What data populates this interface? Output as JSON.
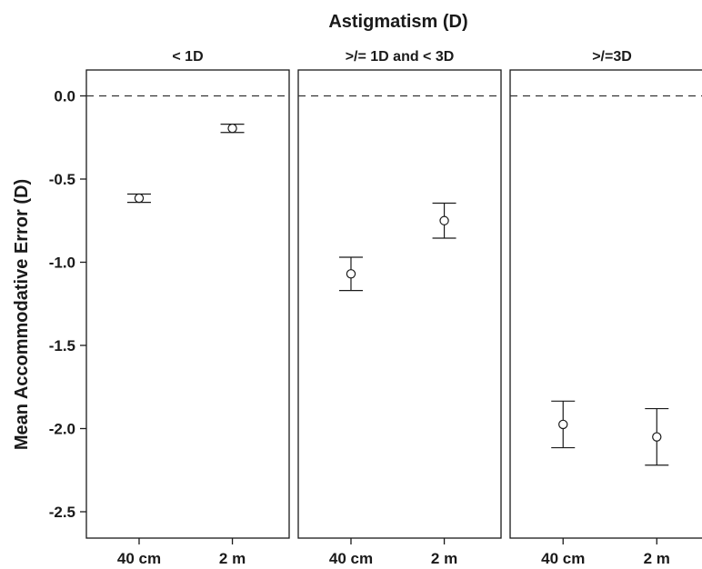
{
  "chart_data": {
    "type": "scatter",
    "title": "Astigmatism (D)",
    "ylabel": "Mean Accommodative Error (D)",
    "xlabel": "",
    "ylim": [
      -2.65,
      0.2
    ],
    "yticks": [
      0.0,
      -0.5,
      -1.0,
      -1.5,
      -2.0,
      -2.5
    ],
    "ytick_labels": [
      "0.0",
      "-0.5",
      "-1.0",
      "-1.5",
      "-2.0",
      "-2.5"
    ],
    "categories": [
      "40 cm",
      "2 m"
    ],
    "reference_line": {
      "y": 0.0,
      "style": "dashed"
    },
    "grid": false,
    "marker": "open-circle",
    "error_bars": true,
    "panels": [
      {
        "label": "< 1D",
        "points": [
          {
            "x": "40 cm",
            "y": -0.615,
            "low": -0.64,
            "high": -0.59
          },
          {
            "x": "2 m",
            "y": -0.195,
            "low": -0.22,
            "high": -0.17
          }
        ]
      },
      {
        "label": ">/= 1D and < 3D",
        "points": [
          {
            "x": "40 cm",
            "y": -1.07,
            "low": -1.17,
            "high": -0.97
          },
          {
            "x": "2 m",
            "y": -0.75,
            "low": -0.855,
            "high": -0.645
          }
        ]
      },
      {
        "label": ">/=3D",
        "points": [
          {
            "x": "40 cm",
            "y": -1.975,
            "low": -2.115,
            "high": -1.835
          },
          {
            "x": "2 m",
            "y": -2.05,
            "low": -2.22,
            "high": -1.88
          }
        ]
      }
    ]
  }
}
